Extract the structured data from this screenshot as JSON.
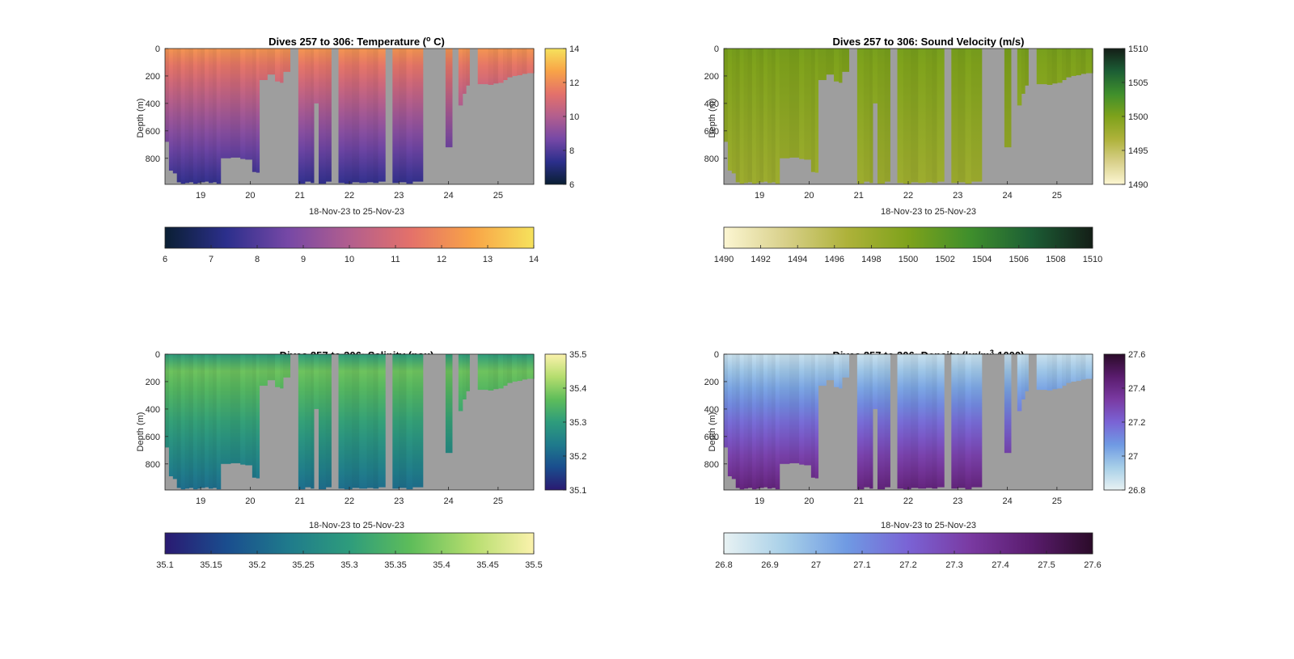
{
  "figure": {
    "background": "#ffffff",
    "gap_color": "#9e9e9e",
    "xlabel": "18-Nov-23 to 25-Nov-23",
    "ylabel": "Depth (m)",
    "x_ticks": [
      "19",
      "20",
      "21",
      "22",
      "23",
      "24",
      "25"
    ],
    "x_tick_values": [
      19,
      20,
      21,
      22,
      23,
      24,
      25
    ],
    "xlim": [
      18.28,
      25.72
    ],
    "y_ticks": [
      "0",
      "200",
      "400",
      "600",
      "800"
    ],
    "y_tick_values": [
      0,
      200,
      400,
      600,
      800
    ],
    "ylim": [
      0,
      990
    ]
  },
  "chart_data": [
    {
      "type": "heatmap",
      "variable": "temperature",
      "title_main": "Dives 257 to 306: Temperature (",
      "title_sup": "o",
      "title_end": " C)",
      "xlabel": "18-Nov-23 to 25-Nov-23",
      "ylabel": "Depth (m)",
      "surface_value": 12.3,
      "bottom_value": 7.4,
      "colormap": [
        "#0a1f33",
        "#2c2f8c",
        "#7648a6",
        "#b25e8e",
        "#e4716a",
        "#f8a347",
        "#f6e25c"
      ],
      "colorbar_side": {
        "ticks": [
          "6",
          "8",
          "10",
          "12",
          "14"
        ],
        "tick_values": [
          6,
          8,
          10,
          12,
          14
        ],
        "range": [
          6,
          14
        ]
      },
      "colorbar_horizontal": {
        "ticks": [
          "6",
          "7",
          "8",
          "9",
          "10",
          "11",
          "12",
          "13",
          "14"
        ],
        "tick_values": [
          6,
          7,
          8,
          9,
          10,
          11,
          12,
          13,
          14
        ],
        "range": [
          6,
          14
        ]
      }
    },
    {
      "type": "heatmap",
      "variable": "sound_velocity",
      "title_main": "Dives 257 to 306: Sound Velocity (m/s)",
      "title_sup": "",
      "title_end": "",
      "xlabel": "18-Nov-23 to 25-Nov-23",
      "ylabel": "Depth (m)",
      "surface_value": 1500.3,
      "bottom_value": 1497.8,
      "colormap": [
        "#fcf6d2",
        "#d8d08a",
        "#aeb23a",
        "#7ea21b",
        "#3f8f2c",
        "#1c5e35",
        "#141e17"
      ],
      "colorbar_side": {
        "ticks": [
          "1490",
          "1495",
          "1500",
          "1505",
          "1510"
        ],
        "tick_values": [
          1490,
          1495,
          1500,
          1505,
          1510
        ],
        "range": [
          1490,
          1510
        ]
      },
      "colorbar_horizontal": {
        "ticks": [
          "1490",
          "1492",
          "1494",
          "1496",
          "1498",
          "1500",
          "1502",
          "1504",
          "1506",
          "1508",
          "1510"
        ],
        "tick_values": [
          1490,
          1492,
          1494,
          1496,
          1498,
          1500,
          1502,
          1504,
          1506,
          1508,
          1510
        ],
        "range": [
          1490,
          1510
        ]
      }
    },
    {
      "type": "heatmap",
      "variable": "salinity",
      "title_main": "Dives 257 to 306: Salinity (psu)",
      "title_sup": "",
      "title_end": "",
      "xlabel": "18-Nov-23 to 25-Nov-23",
      "ylabel": "Depth (m)",
      "surface_value": 35.33,
      "bottom_value": 35.2,
      "colormap": [
        "#2a1a72",
        "#1a4d8e",
        "#1f7a8c",
        "#2e9c7c",
        "#5ebd5a",
        "#b5dd6e",
        "#fbf2ac"
      ],
      "colorbar_side": {
        "ticks": [
          "35.1",
          "35.2",
          "35.3",
          "35.4",
          "35.5"
        ],
        "tick_values": [
          35.1,
          35.2,
          35.3,
          35.4,
          35.5
        ],
        "range": [
          35.1,
          35.5
        ]
      },
      "colorbar_horizontal": {
        "ticks": [
          "35.1",
          "35.15",
          "35.2",
          "35.25",
          "35.3",
          "35.35",
          "35.4",
          "35.45",
          "35.5"
        ],
        "tick_values": [
          35.1,
          35.15,
          35.2,
          35.25,
          35.3,
          35.35,
          35.4,
          35.45,
          35.5
        ],
        "range": [
          35.1,
          35.5
        ]
      }
    },
    {
      "type": "heatmap",
      "variable": "density",
      "title_main": "Dives 257 to 306: Density (kg/m",
      "title_sup": "3",
      "title_end": "-1000)",
      "xlabel": "18-Nov-23 to 25-Nov-23",
      "ylabel": "Depth (m)",
      "surface_value": 26.86,
      "bottom_value": 27.43,
      "colormap": [
        "#e8f2f3",
        "#a7cfe8",
        "#6f9ae3",
        "#7a63d5",
        "#7a3aa2",
        "#5a1c6e",
        "#2b0b29"
      ],
      "colorbar_side": {
        "ticks": [
          "26.8",
          "27",
          "27.2",
          "27.4",
          "27.6"
        ],
        "tick_values": [
          26.8,
          27.0,
          27.2,
          27.4,
          27.6
        ],
        "range": [
          26.8,
          27.6
        ]
      },
      "colorbar_horizontal": {
        "ticks": [
          "26.8",
          "26.9",
          "27",
          "27.1",
          "27.2",
          "27.3",
          "27.4",
          "27.5",
          "27.6"
        ],
        "tick_values": [
          26.8,
          26.9,
          27.0,
          27.1,
          27.2,
          27.3,
          27.4,
          27.5,
          27.6
        ],
        "range": [
          26.8,
          27.6
        ]
      }
    }
  ]
}
